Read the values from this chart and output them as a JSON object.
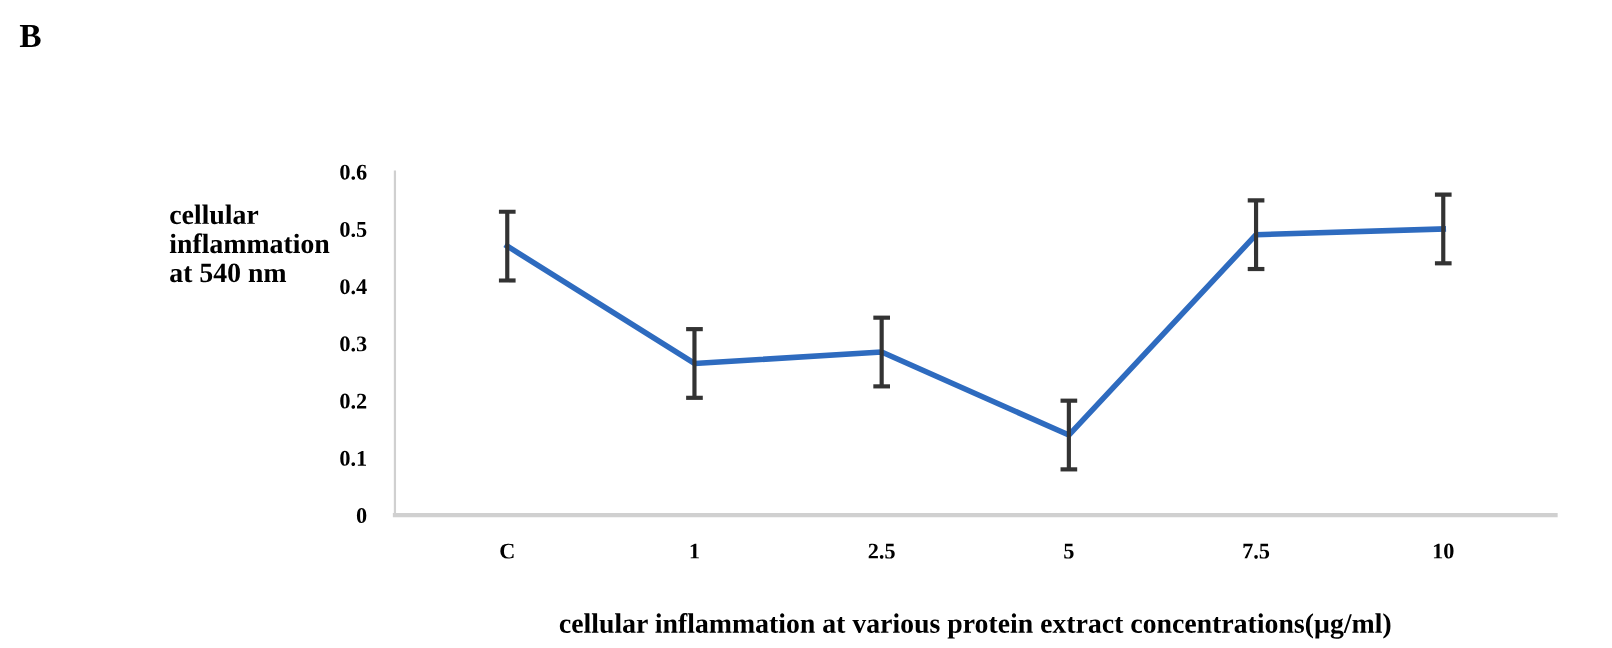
{
  "chart_data": {
    "type": "line",
    "xlabel": "cellular inflammation at various protein extract concentrations(µg/ml)",
    "ylabel": "cellular\ninflammation\nat 540 nm",
    "annotations": [
      "B"
    ],
    "categories": [
      "C",
      "1",
      "2.5",
      "5",
      "7.5",
      "10"
    ],
    "series": [
      {
        "color": "#2e6bbf",
        "values": [
          0.47,
          0.265,
          0.285,
          0.14,
          0.49,
          0.5
        ],
        "errors": [
          0.06,
          0.06,
          0.06,
          0.06,
          0.06,
          0.06
        ]
      }
    ],
    "ylim": [
      0,
      0.6
    ],
    "yticks": [
      0,
      0.1,
      0.2,
      0.3,
      0.4,
      0.5,
      0.6
    ],
    "grid": false,
    "marker": "none",
    "line_style": "solid"
  }
}
